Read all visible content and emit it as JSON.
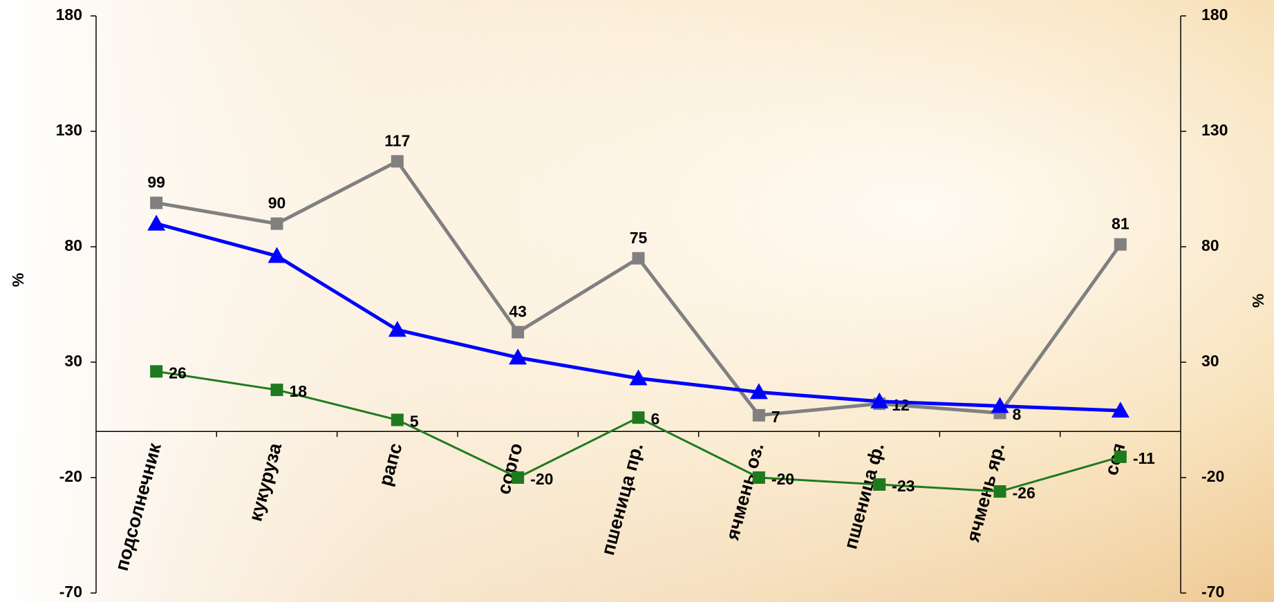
{
  "chart_data": {
    "type": "line",
    "y_label": "%",
    "y2_label": "%",
    "categories": [
      "подсолнечник",
      "кукуруза",
      "рапс",
      "сорго",
      "пшеница пр.",
      "ячмень оз.",
      "пшеница ф.",
      "ячмень яр.",
      "соя"
    ],
    "series": [
      {
        "color": "#808080",
        "marker": "square",
        "values": [
          99,
          90,
          117,
          43,
          75,
          7,
          12,
          8,
          81
        ],
        "labels": true
      },
      {
        "color": "#0000ff",
        "marker": "triangle",
        "values": [
          90,
          76,
          44,
          32,
          23,
          17,
          13,
          11,
          9
        ],
        "labels": false
      },
      {
        "color": "#1f7a1f",
        "marker": "square",
        "values": [
          26,
          18,
          5,
          -20,
          6,
          -20,
          -23,
          -26,
          -11
        ],
        "labels": true
      }
    ],
    "ylim": [
      -70,
      180
    ],
    "yticks": [
      -70,
      -20,
      30,
      80,
      130,
      180
    ],
    "y2lim": [
      -70,
      180
    ],
    "y2ticks": [
      -70,
      -20,
      30,
      80,
      130,
      180
    ]
  }
}
